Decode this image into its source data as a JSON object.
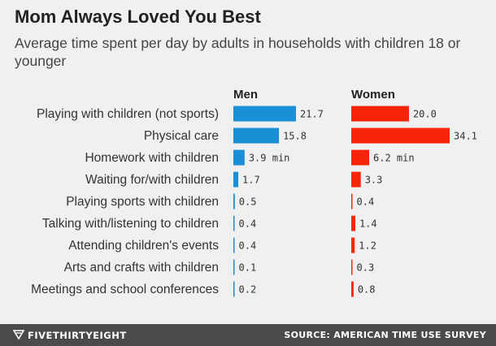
{
  "title": "Mom Always Loved You Best",
  "subtitle": "Average time spent per day by adults in households with children 18 or younger",
  "footer": {
    "brand": "FIVETHIRTYEIGHT",
    "source": "SOURCE: AMERICAN TIME USE SURVEY"
  },
  "colors": {
    "men": "#1a8fd6",
    "women": "#f7260a",
    "background": "#f0f0f0",
    "footer": "#4a4a4a"
  },
  "chart_data": {
    "type": "bar",
    "orientation": "horizontal",
    "panels": [
      "Men",
      "Women"
    ],
    "categories": [
      "Playing with children (not sports)",
      "Physical care",
      "Homework with children",
      "Waiting for/with children",
      "Playing sports with children",
      "Talking with/listening to children",
      "Attending children's events",
      "Arts and crafts with children",
      "Meetings and school conferences"
    ],
    "series": [
      {
        "name": "Men",
        "values": [
          21.7,
          15.8,
          3.9,
          1.7,
          0.5,
          0.4,
          0.4,
          0.1,
          0.2
        ],
        "labels": [
          "21.7",
          "15.8",
          "3.9 min",
          "1.7",
          "0.5",
          "0.4",
          "0.4",
          "0.1",
          "0.2"
        ]
      },
      {
        "name": "Women",
        "values": [
          20.0,
          34.1,
          6.2,
          3.3,
          0.4,
          1.4,
          1.2,
          0.3,
          0.8
        ],
        "labels": [
          "20.0",
          "34.1",
          "6.2 min",
          "3.3",
          "0.4",
          "1.4",
          "1.2",
          "0.3",
          "0.8"
        ]
      }
    ],
    "xlim": [
      0,
      34.1
    ],
    "grid": false,
    "legend": "none"
  }
}
